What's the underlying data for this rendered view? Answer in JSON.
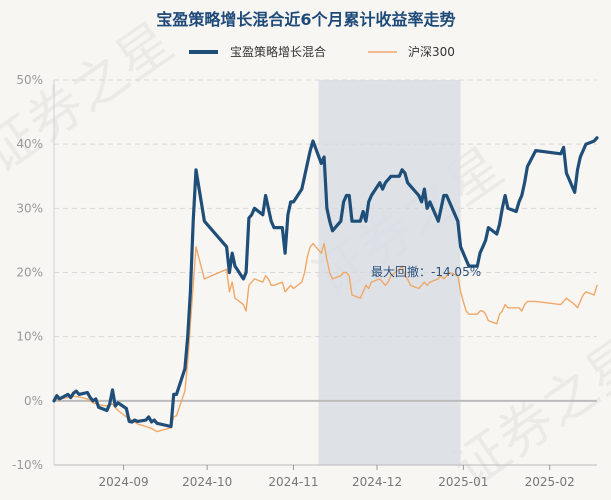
{
  "chart_data": {
    "type": "line",
    "title": "宝盈策略增长混合近6个月累计收益率走势",
    "watermark": "证券之星",
    "y_unit": "%",
    "ylim": [
      -10,
      50
    ],
    "y_ticks": [
      "50%",
      "40%",
      "30%",
      "20%",
      "10%",
      "0%",
      "-10%"
    ],
    "x_ticks": [
      "2024-09",
      "2024-10",
      "2024-11",
      "2024-12",
      "2025-01",
      "2025-02"
    ],
    "grid": true,
    "legend_position": "top-center",
    "annotation": {
      "label": "最大回撤：",
      "value": "-14.05%",
      "drawdown_start": "2024-11-10",
      "drawdown_end": "2024-12-31",
      "shade_color": "#d9dee5"
    },
    "series": [
      {
        "name": "宝盈策略增长混合",
        "color": "#1f4e79",
        "points": [
          [
            "2024-08-07",
            0
          ],
          [
            "2024-08-08",
            0.8
          ],
          [
            "2024-08-09",
            0.3
          ],
          [
            "2024-08-12",
            1
          ],
          [
            "2024-08-13",
            0.5
          ],
          [
            "2024-08-14",
            1.2
          ],
          [
            "2024-08-15",
            1.5
          ],
          [
            "2024-08-16",
            1.0
          ],
          [
            "2024-08-19",
            1.3
          ],
          [
            "2024-08-20",
            0.5
          ],
          [
            "2024-08-21",
            0.0
          ],
          [
            "2024-08-22",
            0.3
          ],
          [
            "2024-08-23",
            -1.0
          ],
          [
            "2024-08-26",
            -1.5
          ],
          [
            "2024-08-27",
            -0.5
          ],
          [
            "2024-08-28",
            1.7
          ],
          [
            "2024-08-29",
            -0.8
          ],
          [
            "2024-08-30",
            -0.3
          ],
          [
            "2024-09-02",
            -1.2
          ],
          [
            "2024-09-03",
            -3.2
          ],
          [
            "2024-09-04",
            -3.3
          ],
          [
            "2024-09-05",
            -3.0
          ],
          [
            "2024-09-06",
            -3.2
          ],
          [
            "2024-09-09",
            -3.0
          ],
          [
            "2024-09-10",
            -2.5
          ],
          [
            "2024-09-11",
            -3.3
          ],
          [
            "2024-09-12",
            -3.0
          ],
          [
            "2024-09-13",
            -3.5
          ],
          [
            "2024-09-18",
            -4.0
          ],
          [
            "2024-09-19",
            1.0
          ],
          [
            "2024-09-20",
            1.0
          ],
          [
            "2024-09-23",
            5
          ],
          [
            "2024-09-24",
            10
          ],
          [
            "2024-09-25",
            17
          ],
          [
            "2024-09-26",
            28
          ],
          [
            "2024-09-27",
            36
          ],
          [
            "2024-09-30",
            28
          ],
          [
            "2024-10-08",
            24
          ],
          [
            "2024-10-09",
            20
          ],
          [
            "2024-10-10",
            23
          ],
          [
            "2024-10-11",
            21
          ],
          [
            "2024-10-14",
            19
          ],
          [
            "2024-10-15",
            20
          ],
          [
            "2024-10-16",
            28.5
          ],
          [
            "2024-10-17",
            29
          ],
          [
            "2024-10-18",
            30
          ],
          [
            "2024-10-21",
            29
          ],
          [
            "2024-10-22",
            32
          ],
          [
            "2024-10-23",
            30
          ],
          [
            "2024-10-24",
            28
          ],
          [
            "2024-10-25",
            27
          ],
          [
            "2024-10-28",
            27
          ],
          [
            "2024-10-29",
            23
          ],
          [
            "2024-10-30",
            29
          ],
          [
            "2024-10-31",
            31
          ],
          [
            "2024-11-01",
            31
          ],
          [
            "2024-11-04",
            33
          ],
          [
            "2024-11-05",
            35
          ],
          [
            "2024-11-06",
            37
          ],
          [
            "2024-11-07",
            39
          ],
          [
            "2024-11-08",
            40.5
          ],
          [
            "2024-11-11",
            37
          ],
          [
            "2024-11-12",
            38
          ],
          [
            "2024-11-13",
            30
          ],
          [
            "2024-11-14",
            28
          ],
          [
            "2024-11-15",
            26.5
          ],
          [
            "2024-11-18",
            28
          ],
          [
            "2024-11-19",
            31
          ],
          [
            "2024-11-20",
            32
          ],
          [
            "2024-11-21",
            32
          ],
          [
            "2024-11-22",
            28
          ],
          [
            "2024-11-25",
            28
          ],
          [
            "2024-11-26",
            29.5
          ],
          [
            "2024-11-27",
            28
          ],
          [
            "2024-11-28",
            31
          ],
          [
            "2024-11-29",
            32
          ],
          [
            "2024-12-02",
            34
          ],
          [
            "2024-12-03",
            33
          ],
          [
            "2024-12-04",
            34
          ],
          [
            "2024-12-05",
            34.5
          ],
          [
            "2024-12-06",
            35
          ],
          [
            "2024-12-09",
            35
          ],
          [
            "2024-12-10",
            36
          ],
          [
            "2024-12-11",
            35.5
          ],
          [
            "2024-12-12",
            34
          ],
          [
            "2024-12-13",
            33.5
          ],
          [
            "2024-12-16",
            32
          ],
          [
            "2024-12-17",
            31
          ],
          [
            "2024-12-18",
            33
          ],
          [
            "2024-12-19",
            30
          ],
          [
            "2024-12-20",
            31
          ],
          [
            "2024-12-23",
            28
          ],
          [
            "2024-12-24",
            30
          ],
          [
            "2024-12-25",
            32
          ],
          [
            "2024-12-26",
            32
          ],
          [
            "2024-12-27",
            31
          ],
          [
            "2024-12-30",
            28
          ],
          [
            "2024-12-31",
            24
          ],
          [
            "2025-01-02",
            22
          ],
          [
            "2025-01-03",
            21
          ],
          [
            "2025-01-06",
            21
          ],
          [
            "2025-01-07",
            23
          ],
          [
            "2025-01-08",
            24
          ],
          [
            "2025-01-09",
            25
          ],
          [
            "2025-01-10",
            27
          ],
          [
            "2025-01-13",
            26
          ],
          [
            "2025-01-14",
            27.5
          ],
          [
            "2025-01-15",
            30
          ],
          [
            "2025-01-16",
            32
          ],
          [
            "2025-01-17",
            30
          ],
          [
            "2025-01-20",
            29.5
          ],
          [
            "2025-01-21",
            31
          ],
          [
            "2025-01-22",
            32
          ],
          [
            "2025-01-23",
            34
          ],
          [
            "2025-01-24",
            36.5
          ],
          [
            "2025-01-27",
            39
          ],
          [
            "2025-02-05",
            38.5
          ],
          [
            "2025-02-06",
            39.5
          ],
          [
            "2025-02-07",
            35.5
          ],
          [
            "2025-02-10",
            32.5
          ],
          [
            "2025-02-11",
            36
          ],
          [
            "2025-02-12",
            38
          ],
          [
            "2025-02-13",
            39
          ],
          [
            "2025-02-14",
            40
          ],
          [
            "2025-02-17",
            40.5
          ],
          [
            "2025-02-18",
            41
          ]
        ]
      },
      {
        "name": "沪深300",
        "color": "#f0a868",
        "points": [
          [
            "2024-08-07",
            0
          ],
          [
            "2024-08-09",
            0.3
          ],
          [
            "2024-08-12",
            0.5
          ],
          [
            "2024-08-14",
            0.7
          ],
          [
            "2024-08-16",
            0.6
          ],
          [
            "2024-08-19",
            0.3
          ],
          [
            "2024-08-21",
            -0.3
          ],
          [
            "2024-08-23",
            -0.6
          ],
          [
            "2024-08-26",
            -0.8
          ],
          [
            "2024-08-28",
            -0.5
          ],
          [
            "2024-08-30",
            -1.5
          ],
          [
            "2024-09-02",
            -2.5
          ],
          [
            "2024-09-04",
            -3.0
          ],
          [
            "2024-09-06",
            -3.6
          ],
          [
            "2024-09-09",
            -4.0
          ],
          [
            "2024-09-11",
            -4.3
          ],
          [
            "2024-09-13",
            -4.8
          ],
          [
            "2024-09-18",
            -4.2
          ],
          [
            "2024-09-19",
            -2.5
          ],
          [
            "2024-09-20",
            -2.3
          ],
          [
            "2024-09-23",
            1.5
          ],
          [
            "2024-09-24",
            6
          ],
          [
            "2024-09-25",
            12
          ],
          [
            "2024-09-26",
            18
          ],
          [
            "2024-09-27",
            24
          ],
          [
            "2024-09-30",
            19
          ],
          [
            "2024-10-08",
            20.5
          ],
          [
            "2024-10-09",
            17
          ],
          [
            "2024-10-10",
            18.5
          ],
          [
            "2024-10-11",
            16
          ],
          [
            "2024-10-14",
            15
          ],
          [
            "2024-10-15",
            14
          ],
          [
            "2024-10-16",
            18
          ],
          [
            "2024-10-17",
            18.5
          ],
          [
            "2024-10-18",
            19
          ],
          [
            "2024-10-21",
            18.5
          ],
          [
            "2024-10-22",
            19.5
          ],
          [
            "2024-10-23",
            19
          ],
          [
            "2024-10-24",
            18
          ],
          [
            "2024-10-25",
            18
          ],
          [
            "2024-10-28",
            18.5
          ],
          [
            "2024-10-29",
            17
          ],
          [
            "2024-10-30",
            17.5
          ],
          [
            "2024-10-31",
            18
          ],
          [
            "2024-11-01",
            17.5
          ],
          [
            "2024-11-04",
            18.5
          ],
          [
            "2024-11-05",
            20
          ],
          [
            "2024-11-06",
            22.5
          ],
          [
            "2024-11-07",
            24
          ],
          [
            "2024-11-08",
            24.5
          ],
          [
            "2024-11-11",
            23
          ],
          [
            "2024-11-12",
            24.5
          ],
          [
            "2024-11-13",
            22
          ],
          [
            "2024-11-14",
            20
          ],
          [
            "2024-11-15",
            19
          ],
          [
            "2024-11-18",
            19.5
          ],
          [
            "2024-11-19",
            20
          ],
          [
            "2024-11-20",
            20
          ],
          [
            "2024-11-21",
            19.5
          ],
          [
            "2024-11-22",
            16.5
          ],
          [
            "2024-11-25",
            16
          ],
          [
            "2024-11-26",
            17
          ],
          [
            "2024-11-27",
            18
          ],
          [
            "2024-11-28",
            17.5
          ],
          [
            "2024-11-29",
            18.5
          ],
          [
            "2024-12-02",
            19
          ],
          [
            "2024-12-03",
            18.5
          ],
          [
            "2024-12-04",
            18
          ],
          [
            "2024-12-05",
            18.5
          ],
          [
            "2024-12-06",
            19.5
          ],
          [
            "2024-12-09",
            20.5
          ],
          [
            "2024-12-10",
            21
          ],
          [
            "2024-12-11",
            19.5
          ],
          [
            "2024-12-12",
            19
          ],
          [
            "2024-12-13",
            18
          ],
          [
            "2024-12-16",
            17.5
          ],
          [
            "2024-12-17",
            18
          ],
          [
            "2024-12-18",
            18.5
          ],
          [
            "2024-12-19",
            18
          ],
          [
            "2024-12-20",
            18.5
          ],
          [
            "2024-12-23",
            19
          ],
          [
            "2024-12-24",
            19.5
          ],
          [
            "2024-12-25",
            19
          ],
          [
            "2024-12-26",
            19.5
          ],
          [
            "2024-12-27",
            20
          ],
          [
            "2024-12-30",
            19.5
          ],
          [
            "2024-12-31",
            17
          ],
          [
            "2025-01-02",
            14
          ],
          [
            "2025-01-03",
            13.5
          ],
          [
            "2025-01-06",
            13.5
          ],
          [
            "2025-01-07",
            14
          ],
          [
            "2025-01-08",
            14
          ],
          [
            "2025-01-09",
            13.5
          ],
          [
            "2025-01-10",
            12.5
          ],
          [
            "2025-01-13",
            12
          ],
          [
            "2025-01-14",
            13.5
          ],
          [
            "2025-01-15",
            14
          ],
          [
            "2025-01-16",
            15
          ],
          [
            "2025-01-17",
            14.5
          ],
          [
            "2025-01-20",
            14.5
          ],
          [
            "2025-01-21",
            14.5
          ],
          [
            "2025-01-22",
            14
          ],
          [
            "2025-01-23",
            15
          ],
          [
            "2025-01-24",
            15.5
          ],
          [
            "2025-01-27",
            15.5
          ],
          [
            "2025-02-05",
            15
          ],
          [
            "2025-02-06",
            15.5
          ],
          [
            "2025-02-07",
            16
          ],
          [
            "2025-02-10",
            15
          ],
          [
            "2025-02-11",
            14.5
          ],
          [
            "2025-02-12",
            15.5
          ],
          [
            "2025-02-13",
            16.5
          ],
          [
            "2025-02-14",
            17
          ],
          [
            "2025-02-17",
            16.5
          ],
          [
            "2025-02-18",
            18
          ]
        ]
      }
    ]
  }
}
